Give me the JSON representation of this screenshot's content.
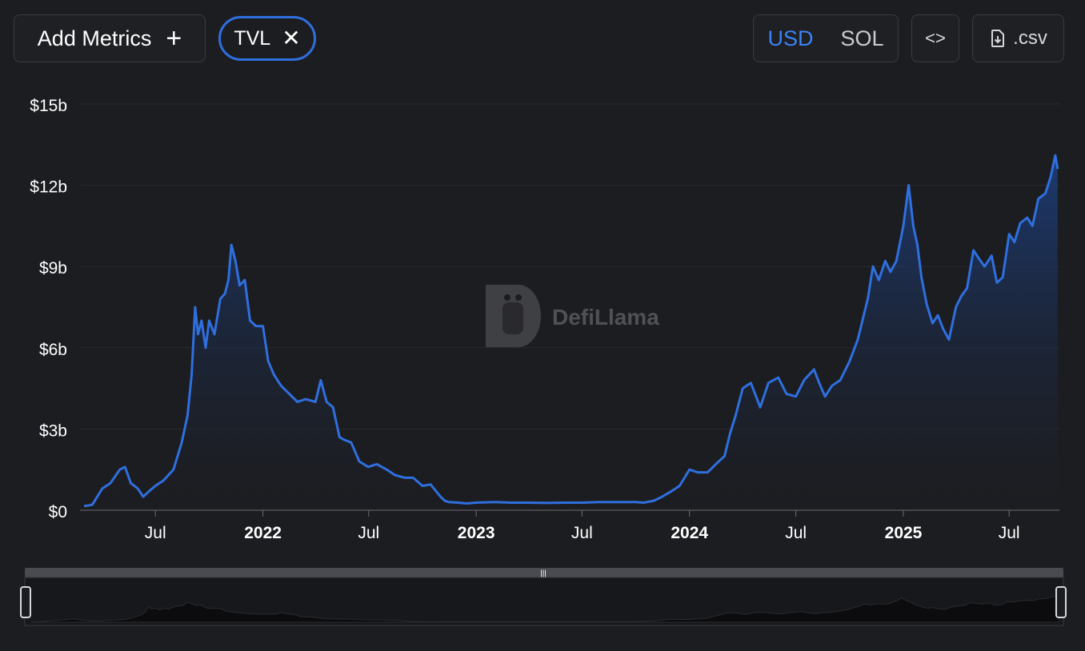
{
  "toolbar": {
    "add_metrics_label": "Add Metrics",
    "add_icon": "plus-icon",
    "active_metric_chip": "TVL",
    "remove_icon": "close-icon",
    "currency_options": [
      "USD",
      "SOL"
    ],
    "selected_currency": "USD",
    "embed_icon": "code-icon",
    "csv_label": ".csv",
    "csv_icon": "file-download-icon"
  },
  "watermark": "DefiLlama",
  "colors": {
    "background": "#1c1d21",
    "line": "#2f6fde",
    "area_top": "#1c3f80",
    "grid": "#2a2b30",
    "text": "#ffffff"
  },
  "chart_data": {
    "type": "area",
    "title": "",
    "xlabel": "",
    "ylabel": "",
    "series": [
      {
        "name": "TVL",
        "x": [
          "2021-03-01",
          "2021-03-15",
          "2021-04-01",
          "2021-04-15",
          "2021-05-01",
          "2021-05-10",
          "2021-05-20",
          "2021-06-01",
          "2021-06-10",
          "2021-06-20",
          "2021-07-01",
          "2021-07-15",
          "2021-08-01",
          "2021-08-15",
          "2021-08-25",
          "2021-09-01",
          "2021-09-07",
          "2021-09-12",
          "2021-09-18",
          "2021-09-25",
          "2021-10-01",
          "2021-10-10",
          "2021-10-20",
          "2021-10-28",
          "2021-11-03",
          "2021-11-08",
          "2021-11-15",
          "2021-11-22",
          "2021-12-01",
          "2021-12-10",
          "2021-12-20",
          "2022-01-01",
          "2022-01-10",
          "2022-01-20",
          "2022-02-01",
          "2022-02-15",
          "2022-03-01",
          "2022-03-15",
          "2022-04-01",
          "2022-04-10",
          "2022-04-20",
          "2022-05-01",
          "2022-05-12",
          "2022-05-20",
          "2022-06-01",
          "2022-06-15",
          "2022-06-30",
          "2022-07-15",
          "2022-08-01",
          "2022-08-15",
          "2022-09-01",
          "2022-09-15",
          "2022-10-01",
          "2022-10-15",
          "2022-11-01",
          "2022-11-08",
          "2022-11-15",
          "2022-12-01",
          "2022-12-15",
          "2023-01-01",
          "2023-02-01",
          "2023-03-01",
          "2023-04-01",
          "2023-05-01",
          "2023-06-01",
          "2023-07-01",
          "2023-08-01",
          "2023-09-01",
          "2023-10-01",
          "2023-10-15",
          "2023-11-01",
          "2023-11-15",
          "2023-12-01",
          "2023-12-15",
          "2024-01-01",
          "2024-01-15",
          "2024-02-01",
          "2024-02-15",
          "2024-03-01",
          "2024-03-10",
          "2024-03-20",
          "2024-04-01",
          "2024-04-15",
          "2024-05-01",
          "2024-05-15",
          "2024-06-01",
          "2024-06-15",
          "2024-07-01",
          "2024-07-15",
          "2024-08-01",
          "2024-08-10",
          "2024-08-20",
          "2024-09-01",
          "2024-09-15",
          "2024-10-01",
          "2024-10-15",
          "2024-11-01",
          "2024-11-10",
          "2024-11-20",
          "2024-12-01",
          "2024-12-10",
          "2024-12-20",
          "2025-01-01",
          "2025-01-10",
          "2025-01-18",
          "2025-01-25",
          "2025-02-01",
          "2025-02-10",
          "2025-02-20",
          "2025-03-01",
          "2025-03-10",
          "2025-03-20",
          "2025-04-01",
          "2025-04-10",
          "2025-04-20",
          "2025-05-01",
          "2025-05-10",
          "2025-05-20",
          "2025-06-01",
          "2025-06-10",
          "2025-06-20",
          "2025-07-01",
          "2025-07-10",
          "2025-07-20",
          "2025-08-01",
          "2025-08-10",
          "2025-08-20",
          "2025-09-01",
          "2025-09-10",
          "2025-09-18",
          "2025-09-22"
        ],
        "values": [
          0.15,
          0.2,
          0.8,
          1.0,
          1.5,
          1.6,
          1.0,
          0.8,
          0.5,
          0.7,
          0.9,
          1.1,
          1.5,
          2.5,
          3.5,
          5.0,
          7.5,
          6.5,
          7.0,
          6.0,
          7.0,
          6.5,
          7.8,
          8.0,
          8.5,
          9.8,
          9.2,
          8.3,
          8.5,
          7.0,
          6.8,
          6.8,
          5.5,
          5.0,
          4.6,
          4.3,
          4.0,
          4.1,
          4.0,
          4.8,
          4.0,
          3.8,
          2.7,
          2.6,
          2.5,
          1.8,
          1.6,
          1.7,
          1.5,
          1.3,
          1.2,
          1.2,
          0.9,
          0.95,
          0.5,
          0.35,
          0.3,
          0.28,
          0.25,
          0.28,
          0.3,
          0.28,
          0.28,
          0.27,
          0.28,
          0.28,
          0.3,
          0.3,
          0.3,
          0.28,
          0.35,
          0.5,
          0.7,
          0.9,
          1.5,
          1.4,
          1.4,
          1.7,
          2.0,
          2.8,
          3.5,
          4.5,
          4.7,
          3.8,
          4.7,
          4.9,
          4.3,
          4.2,
          4.8,
          5.2,
          4.7,
          4.2,
          4.6,
          4.8,
          5.5,
          6.3,
          7.8,
          9.0,
          8.5,
          9.2,
          8.8,
          9.2,
          10.5,
          12.0,
          10.5,
          9.8,
          8.6,
          7.6,
          6.9,
          7.2,
          6.7,
          6.3,
          7.5,
          7.9,
          8.2,
          9.6,
          9.3,
          9.0,
          9.4,
          8.4,
          8.6,
          10.2,
          9.9,
          10.6,
          10.8,
          10.5,
          11.5,
          11.7,
          12.3,
          13.1,
          12.6
        ]
      }
    ],
    "ylim": [
      0,
      15
    ],
    "yticks": [
      0,
      3,
      6,
      9,
      12,
      15
    ],
    "ytick_labels": [
      "$0",
      "$3b",
      "$6b",
      "$9b",
      "$12b",
      "$15b"
    ],
    "xlim": [
      "2021-02-22",
      "2025-09-25"
    ],
    "xticks": [
      "2021-07-01",
      "2022-01-01",
      "2022-07-01",
      "2023-01-01",
      "2023-07-01",
      "2024-01-01",
      "2024-07-01",
      "2025-01-01",
      "2025-07-01"
    ],
    "xtick_labels": [
      "Jul",
      "2022",
      "Jul",
      "2023",
      "Jul",
      "2024",
      "Jul",
      "2025",
      "Jul"
    ],
    "xtick_bold": [
      false,
      true,
      false,
      true,
      false,
      true,
      false,
      true,
      false
    ],
    "grid": true,
    "legend": "none"
  }
}
